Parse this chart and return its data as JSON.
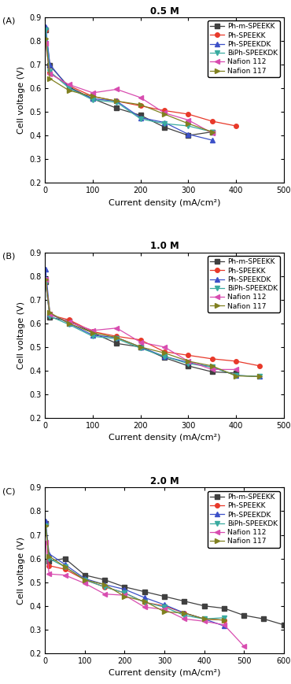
{
  "panels": [
    {
      "label": "A",
      "title": "0.5 M",
      "xlim": [
        0,
        500
      ],
      "xticks": [
        0,
        100,
        200,
        300,
        400,
        500
      ],
      "ylim": [
        0.2,
        0.9
      ],
      "yticks": [
        0.2,
        0.3,
        0.4,
        0.5,
        0.6,
        0.7,
        0.8,
        0.9
      ],
      "series": [
        {
          "label": "Ph-m-SPEEKK",
          "color": "#404040",
          "marker": "s",
          "markersize": 4,
          "x": [
            1,
            10,
            50,
            100,
            150,
            200,
            250,
            300,
            350
          ],
          "y": [
            0.845,
            0.695,
            0.605,
            0.555,
            0.515,
            0.485,
            0.435,
            0.4,
            0.415
          ]
        },
        {
          "label": "Ph-SPEEKK",
          "color": "#e8392a",
          "marker": "o",
          "markersize": 4,
          "x": [
            1,
            10,
            50,
            100,
            150,
            200,
            250,
            300,
            350,
            400
          ],
          "y": [
            0.845,
            0.665,
            0.61,
            0.565,
            0.545,
            0.525,
            0.505,
            0.49,
            0.46,
            0.44
          ]
        },
        {
          "label": "Ph-SPEEKDK",
          "color": "#3c50c8",
          "marker": "^",
          "markersize": 4,
          "x": [
            1,
            10,
            50,
            100,
            150,
            200,
            250,
            300,
            350
          ],
          "y": [
            0.86,
            0.7,
            0.6,
            0.555,
            0.545,
            0.475,
            0.455,
            0.405,
            0.38
          ]
        },
        {
          "label": "BiPh-SPEEKDK",
          "color": "#3aaba0",
          "marker": "v",
          "markersize": 4,
          "x": [
            1,
            10,
            50,
            100,
            150,
            200,
            250,
            300,
            350
          ],
          "y": [
            0.845,
            0.67,
            0.6,
            0.55,
            0.54,
            0.47,
            0.45,
            0.44,
            0.415
          ]
        },
        {
          "label": "Nafion 112",
          "color": "#d84db0",
          "marker": "<",
          "markersize": 4,
          "x": [
            1,
            10,
            50,
            100,
            150,
            200,
            250,
            300,
            350
          ],
          "y": [
            0.79,
            0.66,
            0.615,
            0.58,
            0.595,
            0.56,
            0.495,
            0.465,
            0.41
          ]
        },
        {
          "label": "Nafion 117",
          "color": "#808020",
          "marker": ">",
          "markersize": 4,
          "x": [
            1,
            10,
            50,
            100,
            150,
            200,
            250,
            300,
            350
          ],
          "y": [
            0.81,
            0.64,
            0.59,
            0.565,
            0.545,
            0.53,
            0.49,
            0.45,
            0.415
          ]
        }
      ]
    },
    {
      "label": "B",
      "title": "1.0 M",
      "xlim": [
        0,
        500
      ],
      "xticks": [
        0,
        100,
        200,
        300,
        400,
        500
      ],
      "ylim": [
        0.2,
        0.9
      ],
      "yticks": [
        0.2,
        0.3,
        0.4,
        0.5,
        0.6,
        0.7,
        0.8,
        0.9
      ],
      "series": [
        {
          "label": "Ph-m-SPEEKK",
          "color": "#404040",
          "marker": "s",
          "markersize": 4,
          "x": [
            1,
            10,
            50,
            100,
            150,
            200,
            250,
            300,
            350,
            400
          ],
          "y": [
            0.775,
            0.625,
            0.61,
            0.56,
            0.515,
            0.5,
            0.455,
            0.42,
            0.395,
            0.39
          ]
        },
        {
          "label": "Ph-SPEEKK",
          "color": "#e8392a",
          "marker": "o",
          "markersize": 4,
          "x": [
            1,
            10,
            50,
            100,
            150,
            200,
            250,
            300,
            350,
            400,
            450
          ],
          "y": [
            0.78,
            0.635,
            0.615,
            0.565,
            0.545,
            0.53,
            0.48,
            0.465,
            0.45,
            0.44,
            0.42
          ]
        },
        {
          "label": "Ph-SPEEKDK",
          "color": "#3c50c8",
          "marker": "^",
          "markersize": 4,
          "x": [
            1,
            10,
            50,
            100,
            150,
            200,
            250,
            300,
            350,
            400,
            450
          ],
          "y": [
            0.83,
            0.64,
            0.6,
            0.55,
            0.54,
            0.5,
            0.46,
            0.435,
            0.415,
            0.38,
            0.375
          ]
        },
        {
          "label": "BiPh-SPEEKDK",
          "color": "#3aaba0",
          "marker": "v",
          "markersize": 4,
          "x": [
            1,
            10,
            50,
            100,
            150,
            200,
            250,
            300,
            350,
            400,
            450
          ],
          "y": [
            0.77,
            0.63,
            0.595,
            0.545,
            0.535,
            0.495,
            0.46,
            0.43,
            0.415,
            0.38,
            0.375
          ]
        },
        {
          "label": "Nafion 112",
          "color": "#d84db0",
          "marker": "<",
          "markersize": 4,
          "x": [
            1,
            10,
            50,
            100,
            150,
            200,
            250,
            300,
            350,
            400
          ],
          "y": [
            0.785,
            0.64,
            0.605,
            0.57,
            0.58,
            0.52,
            0.5,
            0.44,
            0.405,
            0.405
          ]
        },
        {
          "label": "Nafion 117",
          "color": "#808020",
          "marker": ">",
          "markersize": 4,
          "x": [
            1,
            10,
            50,
            100,
            150,
            200,
            250,
            300,
            350,
            400,
            450
          ],
          "y": [
            0.785,
            0.645,
            0.6,
            0.56,
            0.54,
            0.5,
            0.475,
            0.44,
            0.42,
            0.378,
            0.375
          ]
        }
      ]
    },
    {
      "label": "C",
      "title": "2.0 M",
      "xlim": [
        0,
        600
      ],
      "xticks": [
        0,
        100,
        200,
        300,
        400,
        500,
        600
      ],
      "ylim": [
        0.2,
        0.9
      ],
      "yticks": [
        0.2,
        0.3,
        0.4,
        0.5,
        0.6,
        0.7,
        0.8,
        0.9
      ],
      "series": [
        {
          "label": "Ph-m-SPEEKK",
          "color": "#404040",
          "marker": "s",
          "markersize": 4,
          "x": [
            1,
            10,
            50,
            100,
            150,
            200,
            250,
            300,
            350,
            400,
            450,
            500,
            550,
            600
          ],
          "y": [
            0.75,
            0.59,
            0.6,
            0.53,
            0.51,
            0.48,
            0.46,
            0.44,
            0.42,
            0.4,
            0.39,
            0.36,
            0.345,
            0.32
          ]
        },
        {
          "label": "Ph-SPEEKK",
          "color": "#e8392a",
          "marker": "o",
          "markersize": 4,
          "x": [
            1,
            10,
            50,
            100,
            150,
            200,
            250,
            300,
            350,
            400,
            450
          ],
          "y": [
            0.75,
            0.57,
            0.555,
            0.51,
            0.48,
            0.455,
            0.415,
            0.4,
            0.37,
            0.345,
            0.34
          ]
        },
        {
          "label": "Ph-SPEEKDK",
          "color": "#3c50c8",
          "marker": "^",
          "markersize": 4,
          "x": [
            1,
            10,
            50,
            100,
            150,
            200,
            250,
            300,
            350,
            400,
            450
          ],
          "y": [
            0.76,
            0.62,
            0.575,
            0.515,
            0.49,
            0.47,
            0.435,
            0.405,
            0.37,
            0.345,
            0.315
          ]
        },
        {
          "label": "BiPh-SPEEKDK",
          "color": "#3aaba0",
          "marker": "v",
          "markersize": 4,
          "x": [
            1,
            10,
            50,
            100,
            150,
            200,
            250,
            300,
            350,
            400,
            450
          ],
          "y": [
            0.74,
            0.6,
            0.565,
            0.51,
            0.48,
            0.455,
            0.415,
            0.395,
            0.36,
            0.345,
            0.35
          ]
        },
        {
          "label": "Nafion 112",
          "color": "#d84db0",
          "marker": "<",
          "markersize": 4,
          "x": [
            1,
            10,
            50,
            100,
            150,
            200,
            250,
            300,
            350,
            400,
            450,
            500
          ],
          "y": [
            0.67,
            0.535,
            0.53,
            0.495,
            0.45,
            0.445,
            0.395,
            0.385,
            0.345,
            0.335,
            0.32,
            0.23
          ]
        },
        {
          "label": "Nafion 117",
          "color": "#808020",
          "marker": ">",
          "markersize": 4,
          "x": [
            1,
            10,
            50,
            100,
            150,
            200,
            250,
            300,
            350,
            400,
            450
          ],
          "y": [
            0.74,
            0.61,
            0.565,
            0.51,
            0.49,
            0.44,
            0.42,
            0.375,
            0.37,
            0.345,
            0.34
          ]
        }
      ]
    }
  ],
  "xlabel": "Current density (mA/cm²)",
  "ylabel": "Cell voltage (V)",
  "linewidth": 0.9,
  "legend_fontsize": 6.5,
  "axis_fontsize": 8,
  "tick_fontsize": 7,
  "title_fontsize": 8.5
}
